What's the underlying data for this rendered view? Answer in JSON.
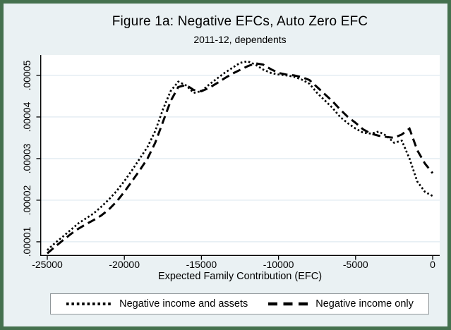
{
  "title": "Figure 1a: Negative EFCs, Auto Zero EFC",
  "subtitle": "2011-12, dependents",
  "colors": {
    "background": "#eaf1f3",
    "frame_border": "#45714e",
    "plot_background": "#ffffff",
    "gridline": "#dfeaf0",
    "axis": "#000000",
    "series": "#000000",
    "legend_border": "#8f9699"
  },
  "chart_data": {
    "type": "line",
    "title": "Figure 1a: Negative EFCs, Auto Zero EFC",
    "subtitle": "2011-12, dependents",
    "xlabel": "Expected Family Contribution (EFC)",
    "xlim": [
      -25000,
      0
    ],
    "ylim": [
      6.6e-06,
      5.49e-05
    ],
    "x_tick_labels": [
      "-25000",
      "-20000",
      "-15000",
      "-10000",
      "-5000",
      "0"
    ],
    "y_tick_labels": [
      ".00001",
      ".00002",
      ".00003",
      ".00004",
      ".00005"
    ],
    "grid": "horizontal gridlines at y ticks",
    "legend_position": "bottom",
    "x": [
      -25000,
      -24500,
      -24000,
      -23500,
      -23000,
      -22500,
      -22000,
      -21500,
      -21000,
      -20500,
      -20000,
      -19500,
      -19000,
      -18500,
      -18000,
      -17500,
      -17000,
      -16500,
      -16000,
      -15500,
      -15000,
      -14500,
      -14000,
      -13500,
      -13000,
      -12500,
      -12000,
      -11500,
      -11000,
      -10500,
      -10000,
      -9500,
      -9000,
      -8500,
      -8000,
      -7500,
      -7000,
      -6500,
      -6000,
      -5500,
      -5000,
      -4500,
      -4000,
      -3500,
      -3000,
      -2500,
      -2000,
      -1500,
      -1000,
      -500,
      0
    ],
    "series": [
      {
        "name": "Negative income and assets",
        "style": "dotted",
        "values": [
          8e-06,
          9.7e-06,
          1.12e-05,
          1.28e-05,
          1.44e-05,
          1.56e-05,
          1.68e-05,
          1.84e-05,
          2.02e-05,
          2.22e-05,
          2.46e-05,
          2.72e-05,
          3e-05,
          3.28e-05,
          3.66e-05,
          4.18e-05,
          4.62e-05,
          4.85e-05,
          4.76e-05,
          4.58e-05,
          4.62e-05,
          4.78e-05,
          4.92e-05,
          5.06e-05,
          5.18e-05,
          5.3e-05,
          5.34e-05,
          5.26e-05,
          5.14e-05,
          5.06e-05,
          5.02e-05,
          5e-05,
          4.97e-05,
          4.9e-05,
          4.8e-05,
          4.58e-05,
          4.4e-05,
          4.22e-05,
          4e-05,
          3.85e-05,
          3.72e-05,
          3.62e-05,
          3.6e-05,
          3.65e-05,
          3.55e-05,
          3.38e-05,
          3.43e-05,
          3e-05,
          2.45e-05,
          2.2e-05,
          2.1e-05
        ]
      },
      {
        "name": "Negative income only",
        "style": "dashed",
        "values": [
          7.2e-06,
          8.8e-06,
          1.03e-05,
          1.18e-05,
          1.31e-05,
          1.42e-05,
          1.52e-05,
          1.63e-05,
          1.78e-05,
          1.97e-05,
          2.2e-05,
          2.46e-05,
          2.72e-05,
          3e-05,
          3.38e-05,
          3.88e-05,
          4.38e-05,
          4.72e-05,
          4.77e-05,
          4.65e-05,
          4.62e-05,
          4.7e-05,
          4.81e-05,
          4.93e-05,
          5.04e-05,
          5.13e-05,
          5.22e-05,
          5.29e-05,
          5.26e-05,
          5.15e-05,
          5.06e-05,
          5.02e-05,
          5e-05,
          4.96e-05,
          4.89e-05,
          4.72e-05,
          4.55e-05,
          4.38e-05,
          4.18e-05,
          4e-05,
          3.86e-05,
          3.7e-05,
          3.6e-05,
          3.55e-05,
          3.52e-05,
          3.5e-05,
          3.58e-05,
          3.72e-05,
          3.2e-05,
          2.88e-05,
          2.65e-05
        ]
      }
    ]
  },
  "legend": {
    "series1_label": "Negative income and assets",
    "series2_label": "Negative income only"
  }
}
